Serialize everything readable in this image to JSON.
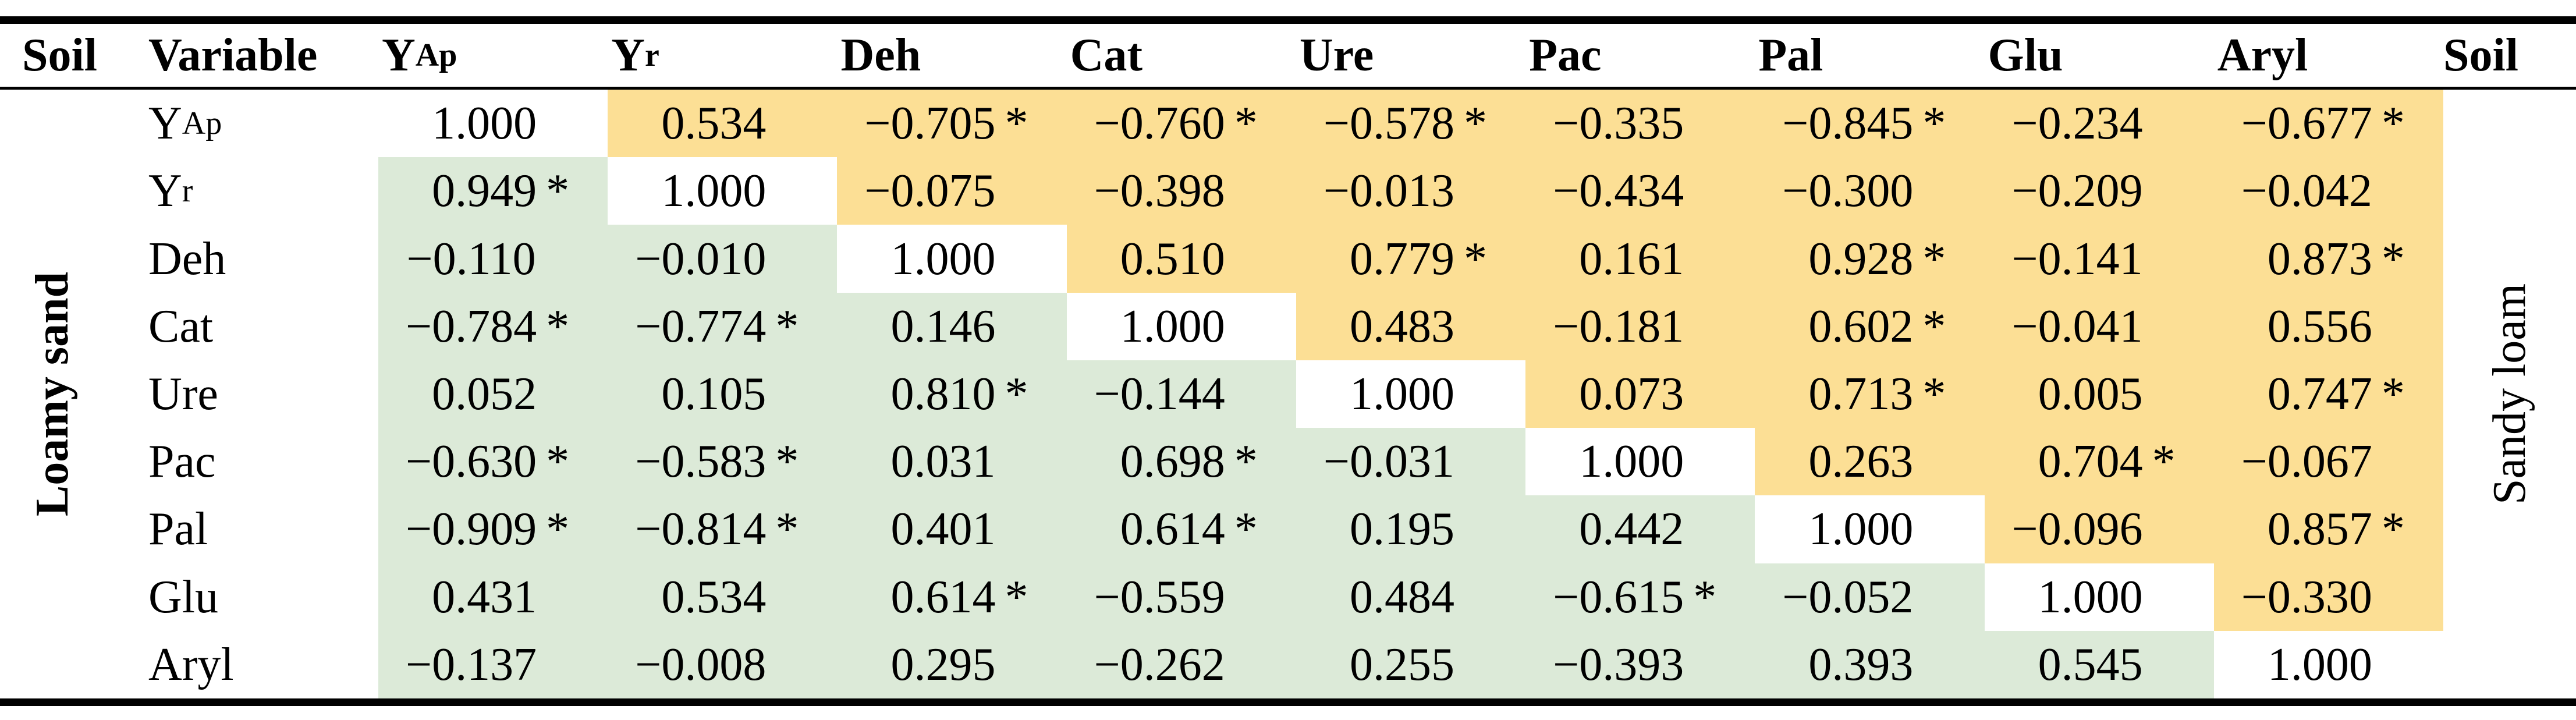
{
  "table": {
    "description": "Correlation matrix of soil variables for two soils; lower-left triangle = Loamy sand, upper-right triangle = Sandy loam; asterisk marks significant coefficients",
    "colors": {
      "lower_triangle": "#dcead8",
      "upper_triangle": "#fcdf95",
      "diagonal": "#ffffff",
      "rule": "#000000"
    },
    "left_group_label": "Loamy sand",
    "right_group_label": "Sandy loam",
    "significance_marker": "*",
    "header": [
      {
        "main": "Soil",
        "sub": ""
      },
      {
        "main": "Variable",
        "sub": ""
      },
      {
        "main": "Y",
        "sub": "Ap"
      },
      {
        "main": "Y",
        "sub": "r"
      },
      {
        "main": "Deh",
        "sub": ""
      },
      {
        "main": "Cat",
        "sub": ""
      },
      {
        "main": "Ure",
        "sub": ""
      },
      {
        "main": "Pac",
        "sub": ""
      },
      {
        "main": "Pal",
        "sub": ""
      },
      {
        "main": "Glu",
        "sub": ""
      },
      {
        "main": "Aryl",
        "sub": ""
      },
      {
        "main": "Soil",
        "sub": ""
      }
    ],
    "rows": [
      {
        "label": {
          "main": "Y",
          "sub": "Ap"
        },
        "cells": [
          {
            "sign": "",
            "num": "1.000",
            "star": ""
          },
          {
            "sign": "",
            "num": "0.534",
            "star": ""
          },
          {
            "sign": "−",
            "num": "0.705",
            "star": "*"
          },
          {
            "sign": "−",
            "num": "0.760",
            "star": "*"
          },
          {
            "sign": "−",
            "num": "0.578",
            "star": "*"
          },
          {
            "sign": "−",
            "num": "0.335",
            "star": ""
          },
          {
            "sign": "−",
            "num": "0.845",
            "star": "*"
          },
          {
            "sign": "−",
            "num": "0.234",
            "star": ""
          },
          {
            "sign": "−",
            "num": "0.677",
            "star": "*"
          }
        ]
      },
      {
        "label": {
          "main": "Y",
          "sub": "r"
        },
        "cells": [
          {
            "sign": "",
            "num": "0.949",
            "star": "*"
          },
          {
            "sign": "",
            "num": "1.000",
            "star": ""
          },
          {
            "sign": "−",
            "num": "0.075",
            "star": ""
          },
          {
            "sign": "−",
            "num": "0.398",
            "star": ""
          },
          {
            "sign": "−",
            "num": "0.013",
            "star": ""
          },
          {
            "sign": "−",
            "num": "0.434",
            "star": ""
          },
          {
            "sign": "−",
            "num": "0.300",
            "star": ""
          },
          {
            "sign": "−",
            "num": "0.209",
            "star": ""
          },
          {
            "sign": "−",
            "num": "0.042",
            "star": ""
          }
        ]
      },
      {
        "label": {
          "main": "Deh",
          "sub": ""
        },
        "cells": [
          {
            "sign": "−",
            "num": "0.110",
            "star": ""
          },
          {
            "sign": "−",
            "num": "0.010",
            "star": ""
          },
          {
            "sign": "",
            "num": "1.000",
            "star": ""
          },
          {
            "sign": "",
            "num": "0.510",
            "star": ""
          },
          {
            "sign": "",
            "num": "0.779",
            "star": "*"
          },
          {
            "sign": "",
            "num": "0.161",
            "star": ""
          },
          {
            "sign": "",
            "num": "0.928",
            "star": "*"
          },
          {
            "sign": "−",
            "num": "0.141",
            "star": ""
          },
          {
            "sign": "",
            "num": "0.873",
            "star": "*"
          }
        ]
      },
      {
        "label": {
          "main": "Cat",
          "sub": ""
        },
        "cells": [
          {
            "sign": "−",
            "num": "0.784",
            "star": "*"
          },
          {
            "sign": "−",
            "num": "0.774",
            "star": "*"
          },
          {
            "sign": "",
            "num": "0.146",
            "star": ""
          },
          {
            "sign": "",
            "num": "1.000",
            "star": ""
          },
          {
            "sign": "",
            "num": "0.483",
            "star": ""
          },
          {
            "sign": "−",
            "num": "0.181",
            "star": ""
          },
          {
            "sign": "",
            "num": "0.602",
            "star": "*"
          },
          {
            "sign": "−",
            "num": "0.041",
            "star": ""
          },
          {
            "sign": "",
            "num": "0.556",
            "star": ""
          }
        ]
      },
      {
        "label": {
          "main": "Ure",
          "sub": ""
        },
        "cells": [
          {
            "sign": "",
            "num": "0.052",
            "star": ""
          },
          {
            "sign": "",
            "num": "0.105",
            "star": ""
          },
          {
            "sign": "",
            "num": "0.810",
            "star": "*"
          },
          {
            "sign": "−",
            "num": "0.144",
            "star": ""
          },
          {
            "sign": "",
            "num": "1.000",
            "star": ""
          },
          {
            "sign": "",
            "num": "0.073",
            "star": ""
          },
          {
            "sign": "",
            "num": "0.713",
            "star": "*"
          },
          {
            "sign": "",
            "num": "0.005",
            "star": ""
          },
          {
            "sign": "",
            "num": "0.747",
            "star": "*"
          }
        ]
      },
      {
        "label": {
          "main": "Pac",
          "sub": ""
        },
        "cells": [
          {
            "sign": "−",
            "num": "0.630",
            "star": "*"
          },
          {
            "sign": "−",
            "num": "0.583",
            "star": "*"
          },
          {
            "sign": "",
            "num": "0.031",
            "star": ""
          },
          {
            "sign": "",
            "num": "0.698",
            "star": "*"
          },
          {
            "sign": "−",
            "num": "0.031",
            "star": ""
          },
          {
            "sign": "",
            "num": "1.000",
            "star": ""
          },
          {
            "sign": "",
            "num": "0.263",
            "star": ""
          },
          {
            "sign": "",
            "num": "0.704",
            "star": "*"
          },
          {
            "sign": "−",
            "num": "0.067",
            "star": ""
          }
        ]
      },
      {
        "label": {
          "main": "Pal",
          "sub": ""
        },
        "cells": [
          {
            "sign": "−",
            "num": "0.909",
            "star": "*"
          },
          {
            "sign": "−",
            "num": "0.814",
            "star": "*"
          },
          {
            "sign": "",
            "num": "0.401",
            "star": ""
          },
          {
            "sign": "",
            "num": "0.614",
            "star": "*"
          },
          {
            "sign": "",
            "num": "0.195",
            "star": ""
          },
          {
            "sign": "",
            "num": "0.442",
            "star": ""
          },
          {
            "sign": "",
            "num": "1.000",
            "star": ""
          },
          {
            "sign": "−",
            "num": "0.096",
            "star": ""
          },
          {
            "sign": "",
            "num": "0.857",
            "star": "*"
          }
        ]
      },
      {
        "label": {
          "main": "Glu",
          "sub": ""
        },
        "cells": [
          {
            "sign": "",
            "num": "0.431",
            "star": ""
          },
          {
            "sign": "",
            "num": "0.534",
            "star": ""
          },
          {
            "sign": "",
            "num": "0.614",
            "star": "*"
          },
          {
            "sign": "−",
            "num": "0.559",
            "star": ""
          },
          {
            "sign": "",
            "num": "0.484",
            "star": ""
          },
          {
            "sign": "−",
            "num": "0.615",
            "star": "*"
          },
          {
            "sign": "−",
            "num": "0.052",
            "star": ""
          },
          {
            "sign": "",
            "num": "1.000",
            "star": ""
          },
          {
            "sign": "−",
            "num": "0.330",
            "star": ""
          }
        ]
      },
      {
        "label": {
          "main": "Aryl",
          "sub": ""
        },
        "cells": [
          {
            "sign": "−",
            "num": "0.137",
            "star": ""
          },
          {
            "sign": "−",
            "num": "0.008",
            "star": ""
          },
          {
            "sign": "",
            "num": "0.295",
            "star": ""
          },
          {
            "sign": "−",
            "num": "0.262",
            "star": ""
          },
          {
            "sign": "",
            "num": "0.255",
            "star": ""
          },
          {
            "sign": "−",
            "num": "0.393",
            "star": ""
          },
          {
            "sign": "",
            "num": "0.393",
            "star": ""
          },
          {
            "sign": "",
            "num": "0.545",
            "star": ""
          },
          {
            "sign": "",
            "num": "1.000",
            "star": ""
          }
        ]
      }
    ]
  }
}
